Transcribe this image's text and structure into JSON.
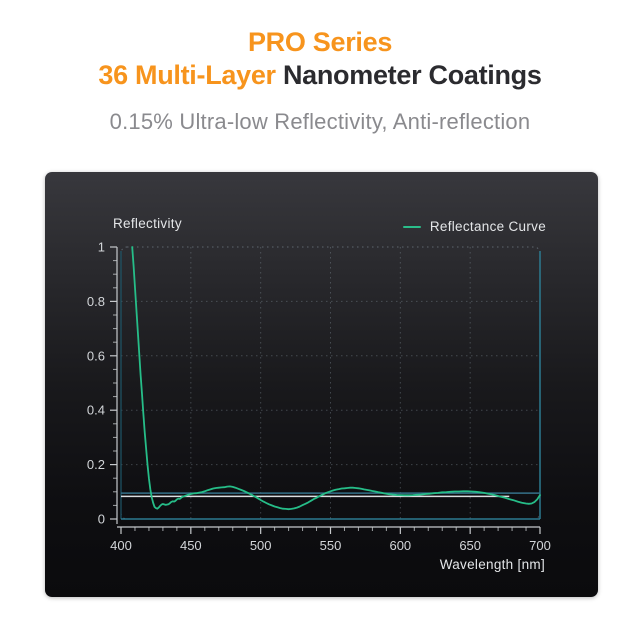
{
  "header": {
    "title_line1": "PRO Series",
    "title_line2_highlight": "36 Multi-Layer",
    "title_line2_rest": " Nanometer Coatings",
    "subtitle": "0.15% Ultra-low Reflectivity, Anti-reflection",
    "accent_color": "#F7941D",
    "title_color": "#2B2B2F",
    "subtitle_color": "#8A8A8E"
  },
  "chart": {
    "panel_bg_top": "#38383D",
    "panel_bg_bottom": "#0B0B0D",
    "text_color": "#E4E6E8",
    "tick_label_color": "#D2D5D8",
    "axis_line_color": "#C6C9CC",
    "grid_color": "#8795A0",
    "border_teal_bright": "#2C7A90",
    "border_teal_dim": "#1E5668"
  },
  "chart_data": {
    "type": "line",
    "title": "Reflectivity",
    "xlabel": "Wavelength [nm]",
    "ylabel": "Reflectivity",
    "xlim": [
      400,
      700
    ],
    "ylim": [
      0,
      1
    ],
    "x_ticks": [
      400,
      450,
      500,
      550,
      600,
      650,
      700
    ],
    "x_minor_step": 10,
    "y_ticks": [
      0,
      0.2,
      0.4,
      0.6,
      0.8,
      1
    ],
    "y_minor_step": 0.05,
    "grid": true,
    "legend_position": "top-right",
    "legend": [
      {
        "label": "Reflectance Curve",
        "color": "#2ABD8A"
      }
    ],
    "reference_lines": [
      {
        "orientation": "horizontal",
        "value": 0.095,
        "x_range": [
          400,
          700
        ],
        "color": "#35708A"
      },
      {
        "orientation": "horizontal",
        "value": 0.083,
        "x_range": [
          400,
          678
        ],
        "color": "#DCDFE2"
      }
    ],
    "series": [
      {
        "name": "Reflectance Curve",
        "color": "#26BD88",
        "width": 1.8,
        "points": [
          [
            408,
            1.0
          ],
          [
            409,
            0.93
          ],
          [
            410,
            0.85
          ],
          [
            411,
            0.77
          ],
          [
            412,
            0.69
          ],
          [
            413,
            0.61
          ],
          [
            414,
            0.53
          ],
          [
            415,
            0.46
          ],
          [
            416,
            0.39
          ],
          [
            417,
            0.32
          ],
          [
            418,
            0.26
          ],
          [
            419,
            0.2
          ],
          [
            420,
            0.15
          ],
          [
            421,
            0.11
          ],
          [
            422,
            0.08
          ],
          [
            423,
            0.06
          ],
          [
            424,
            0.045
          ],
          [
            425,
            0.04
          ],
          [
            426,
            0.038
          ],
          [
            427,
            0.042
          ],
          [
            428,
            0.048
          ],
          [
            429,
            0.053
          ],
          [
            430,
            0.055
          ],
          [
            432,
            0.052
          ],
          [
            434,
            0.054
          ],
          [
            435,
            0.058
          ],
          [
            436,
            0.063
          ],
          [
            437,
            0.065
          ],
          [
            438,
            0.064
          ],
          [
            439,
            0.067
          ],
          [
            440,
            0.072
          ],
          [
            441,
            0.075
          ],
          [
            442,
            0.074
          ],
          [
            443,
            0.078
          ],
          [
            444,
            0.082
          ],
          [
            446,
            0.085
          ],
          [
            448,
            0.089
          ],
          [
            450,
            0.092
          ],
          [
            452,
            0.094
          ],
          [
            454,
            0.095
          ],
          [
            456,
            0.097
          ],
          [
            458,
            0.099
          ],
          [
            460,
            0.102
          ],
          [
            462,
            0.106
          ],
          [
            464,
            0.109
          ],
          [
            466,
            0.112
          ],
          [
            468,
            0.114
          ],
          [
            470,
            0.115
          ],
          [
            472,
            0.116
          ],
          [
            474,
            0.117
          ],
          [
            476,
            0.119
          ],
          [
            478,
            0.12
          ],
          [
            480,
            0.118
          ],
          [
            482,
            0.115
          ],
          [
            484,
            0.111
          ],
          [
            486,
            0.107
          ],
          [
            488,
            0.103
          ],
          [
            490,
            0.098
          ],
          [
            492,
            0.093
          ],
          [
            494,
            0.088
          ],
          [
            496,
            0.082
          ],
          [
            498,
            0.076
          ],
          [
            500,
            0.07
          ],
          [
            502,
            0.064
          ],
          [
            504,
            0.059
          ],
          [
            506,
            0.054
          ],
          [
            508,
            0.05
          ],
          [
            510,
            0.046
          ],
          [
            512,
            0.043
          ],
          [
            514,
            0.04
          ],
          [
            516,
            0.038
          ],
          [
            518,
            0.037
          ],
          [
            520,
            0.036
          ],
          [
            522,
            0.037
          ],
          [
            524,
            0.039
          ],
          [
            526,
            0.042
          ],
          [
            528,
            0.046
          ],
          [
            530,
            0.051
          ],
          [
            532,
            0.056
          ],
          [
            534,
            0.061
          ],
          [
            536,
            0.067
          ],
          [
            538,
            0.073
          ],
          [
            540,
            0.078
          ],
          [
            542,
            0.084
          ],
          [
            544,
            0.089
          ],
          [
            546,
            0.094
          ],
          [
            548,
            0.098
          ],
          [
            550,
            0.102
          ],
          [
            552,
            0.105
          ],
          [
            554,
            0.108
          ],
          [
            556,
            0.11
          ],
          [
            558,
            0.112
          ],
          [
            560,
            0.113
          ],
          [
            562,
            0.114
          ],
          [
            564,
            0.115
          ],
          [
            566,
            0.115
          ],
          [
            568,
            0.114
          ],
          [
            570,
            0.113
          ],
          [
            572,
            0.111
          ],
          [
            574,
            0.109
          ],
          [
            576,
            0.107
          ],
          [
            578,
            0.105
          ],
          [
            580,
            0.103
          ],
          [
            582,
            0.101
          ],
          [
            584,
            0.099
          ],
          [
            586,
            0.097
          ],
          [
            588,
            0.095
          ],
          [
            590,
            0.093
          ],
          [
            592,
            0.091
          ],
          [
            594,
            0.09
          ],
          [
            596,
            0.089
          ],
          [
            598,
            0.088
          ],
          [
            600,
            0.088
          ],
          [
            603,
            0.087
          ],
          [
            606,
            0.087
          ],
          [
            609,
            0.088
          ],
          [
            612,
            0.089
          ],
          [
            615,
            0.09
          ],
          [
            618,
            0.092
          ],
          [
            621,
            0.093
          ],
          [
            624,
            0.095
          ],
          [
            627,
            0.096
          ],
          [
            630,
            0.098
          ],
          [
            633,
            0.099
          ],
          [
            636,
            0.1
          ],
          [
            639,
            0.101
          ],
          [
            642,
            0.101
          ],
          [
            645,
            0.102
          ],
          [
            648,
            0.102
          ],
          [
            651,
            0.101
          ],
          [
            654,
            0.1
          ],
          [
            657,
            0.098
          ],
          [
            660,
            0.096
          ],
          [
            663,
            0.093
          ],
          [
            666,
            0.09
          ],
          [
            669,
            0.086
          ],
          [
            672,
            0.082
          ],
          [
            675,
            0.078
          ],
          [
            678,
            0.073
          ],
          [
            681,
            0.069
          ],
          [
            684,
            0.064
          ],
          [
            687,
            0.06
          ],
          [
            690,
            0.057
          ],
          [
            692,
            0.056
          ],
          [
            694,
            0.057
          ],
          [
            696,
            0.062
          ],
          [
            698,
            0.072
          ],
          [
            700,
            0.088
          ]
        ]
      }
    ]
  }
}
